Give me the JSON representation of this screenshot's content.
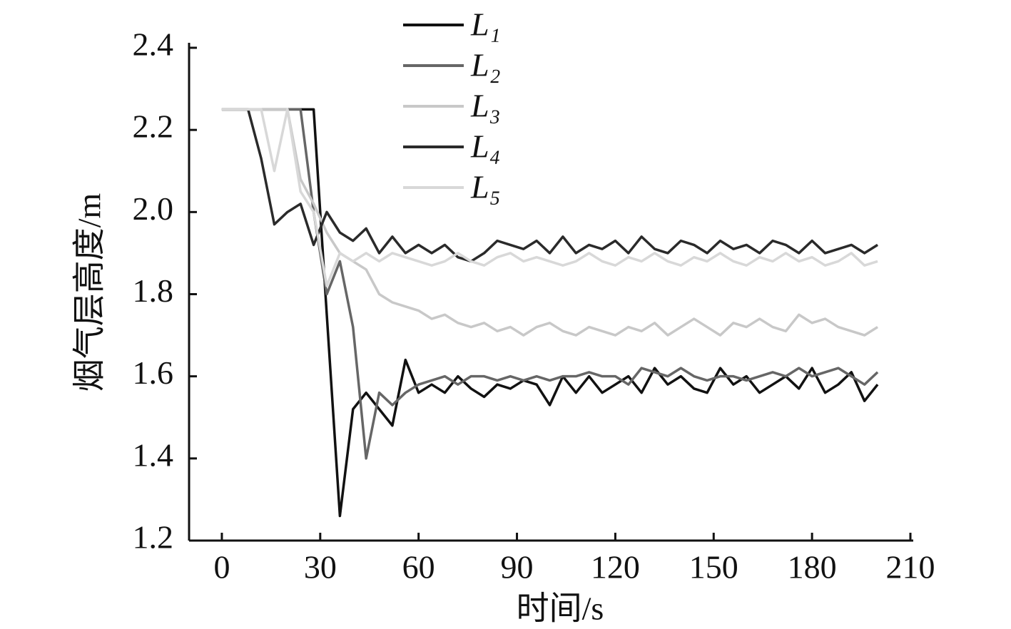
{
  "chart_data": {
    "type": "line",
    "x_label": "时间/s",
    "y_label": "烟气层高度/m",
    "xlim": [
      -10,
      210
    ],
    "ylim": [
      1.2,
      2.4
    ],
    "xticks": [
      0,
      30,
      60,
      90,
      120,
      150,
      180,
      210
    ],
    "yticks": [
      {
        "value": 1.2,
        "label": "1.2"
      },
      {
        "value": 1.4,
        "label": "1.4"
      },
      {
        "value": 1.6,
        "label": "1.6"
      },
      {
        "value": 1.8,
        "label": "1.8"
      },
      {
        "value": 2.0,
        "label": "2.0"
      },
      {
        "value": 2.2,
        "label": "2.2"
      },
      {
        "value": 2.4,
        "label": "2.4"
      }
    ],
    "legend": "top",
    "x": [
      0,
      4,
      8,
      12,
      16,
      20,
      24,
      28,
      32,
      36,
      40,
      44,
      48,
      52,
      56,
      60,
      64,
      68,
      72,
      76,
      80,
      84,
      88,
      92,
      96,
      100,
      104,
      108,
      112,
      116,
      120,
      124,
      128,
      132,
      136,
      140,
      144,
      148,
      152,
      156,
      160,
      164,
      168,
      172,
      176,
      180,
      184,
      188,
      192,
      196,
      200
    ],
    "series": [
      {
        "name": "L₁",
        "color": "#111111",
        "values": [
          2.25,
          2.25,
          2.25,
          2.25,
          2.25,
          2.25,
          2.25,
          2.25,
          1.75,
          1.26,
          1.52,
          1.56,
          1.52,
          1.48,
          1.64,
          1.56,
          1.58,
          1.56,
          1.6,
          1.57,
          1.55,
          1.58,
          1.57,
          1.59,
          1.58,
          1.53,
          1.6,
          1.56,
          1.6,
          1.56,
          1.58,
          1.6,
          1.56,
          1.62,
          1.58,
          1.6,
          1.57,
          1.56,
          1.62,
          1.58,
          1.6,
          1.56,
          1.58,
          1.6,
          1.57,
          1.62,
          1.56,
          1.58,
          1.61,
          1.54,
          1.58
        ]
      },
      {
        "name": "L₂",
        "color": "#666666",
        "values": [
          2.25,
          2.25,
          2.25,
          2.25,
          2.25,
          2.25,
          2.25,
          2.0,
          1.8,
          1.88,
          1.72,
          1.4,
          1.56,
          1.53,
          1.56,
          1.58,
          1.59,
          1.6,
          1.58,
          1.6,
          1.6,
          1.59,
          1.6,
          1.59,
          1.6,
          1.59,
          1.6,
          1.6,
          1.61,
          1.6,
          1.6,
          1.58,
          1.62,
          1.61,
          1.6,
          1.62,
          1.6,
          1.59,
          1.6,
          1.6,
          1.59,
          1.6,
          1.61,
          1.6,
          1.62,
          1.6,
          1.61,
          1.62,
          1.6,
          1.58,
          1.61
        ]
      },
      {
        "name": "L₃",
        "color": "#c8c8c8",
        "values": [
          2.25,
          2.25,
          2.25,
          2.25,
          2.25,
          2.25,
          2.08,
          2.02,
          1.95,
          1.9,
          1.88,
          1.86,
          1.8,
          1.78,
          1.77,
          1.76,
          1.74,
          1.75,
          1.73,
          1.72,
          1.73,
          1.71,
          1.72,
          1.7,
          1.72,
          1.73,
          1.71,
          1.7,
          1.72,
          1.71,
          1.7,
          1.72,
          1.71,
          1.73,
          1.7,
          1.72,
          1.74,
          1.72,
          1.7,
          1.73,
          1.72,
          1.74,
          1.72,
          1.71,
          1.75,
          1.73,
          1.74,
          1.72,
          1.71,
          1.7,
          1.72
        ]
      },
      {
        "name": "L₄",
        "color": "#2a2a2a",
        "values": [
          2.25,
          2.25,
          2.25,
          2.13,
          1.97,
          2.0,
          2.02,
          1.92,
          2.0,
          1.95,
          1.93,
          1.96,
          1.9,
          1.94,
          1.9,
          1.92,
          1.9,
          1.92,
          1.89,
          1.88,
          1.9,
          1.93,
          1.92,
          1.91,
          1.93,
          1.9,
          1.94,
          1.9,
          1.92,
          1.91,
          1.93,
          1.9,
          1.94,
          1.91,
          1.9,
          1.93,
          1.92,
          1.9,
          1.93,
          1.91,
          1.92,
          1.9,
          1.93,
          1.92,
          1.9,
          1.93,
          1.9,
          1.91,
          1.92,
          1.9,
          1.92
        ]
      },
      {
        "name": "L₅",
        "color": "#d8d8d8",
        "values": [
          2.25,
          2.25,
          2.25,
          2.25,
          2.1,
          2.25,
          2.05,
          2.0,
          1.82,
          1.9,
          1.88,
          1.9,
          1.88,
          1.9,
          1.89,
          1.88,
          1.87,
          1.88,
          1.9,
          1.88,
          1.87,
          1.89,
          1.9,
          1.88,
          1.89,
          1.88,
          1.87,
          1.88,
          1.9,
          1.88,
          1.87,
          1.89,
          1.88,
          1.9,
          1.88,
          1.87,
          1.89,
          1.88,
          1.9,
          1.88,
          1.87,
          1.89,
          1.88,
          1.9,
          1.88,
          1.89,
          1.87,
          1.88,
          1.9,
          1.87,
          1.88
        ]
      }
    ]
  }
}
